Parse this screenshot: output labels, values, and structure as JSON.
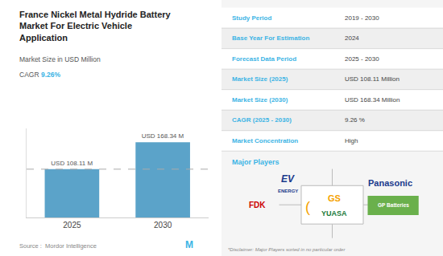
{
  "chart_data": {
    "type": "bar",
    "title": "France Nickel Metal Hydride Battery\nMarket For Electric Vehicle\nApplication",
    "subtitle": "Market Size in USD Million",
    "cagr": [
      "CAGR",
      "9.26%"
    ],
    "categories": [
      "2025",
      "2030"
    ],
    "values": [
      108.11,
      168.34
    ],
    "value_labels": [
      "USD 108.11 M",
      "USD 168.34 M"
    ],
    "data_labels": true,
    "color": "#5ba3c9",
    "ylim": [
      0,
      200
    ],
    "tick_labels": "x",
    "grid": false,
    "reference_line": 108.11,
    "source": "Source :  Mordor Intelligence",
    "logo": "M",
    "table": [
      [
        "Study Period",
        "2019 - 2030"
      ],
      [
        "Base Year For Estimation",
        "2024"
      ],
      [
        "Forecast Data Period",
        "2025 - 2030"
      ],
      [
        "Market Size (2025)",
        "USD 108.11 Million"
      ],
      [
        "Market Size (2030)",
        "USD 168.34 Million"
      ],
      [
        "CAGR (2025 - 2030)",
        "9.26 %"
      ],
      [
        "Market Concentration",
        "High"
      ]
    ],
    "players_label": "Major Players",
    "players": {
      "ev": [
        "EV",
        "ENERGY"
      ],
      "panasonic": "Panasonic",
      "fdk": "FDK",
      "yuasa": [
        "(",
        "GS",
        "YUASA"
      ],
      "gp": "GP Batteries"
    },
    "disclaimer": "*Disclaimer: Major Players sorted in no particular order"
  }
}
